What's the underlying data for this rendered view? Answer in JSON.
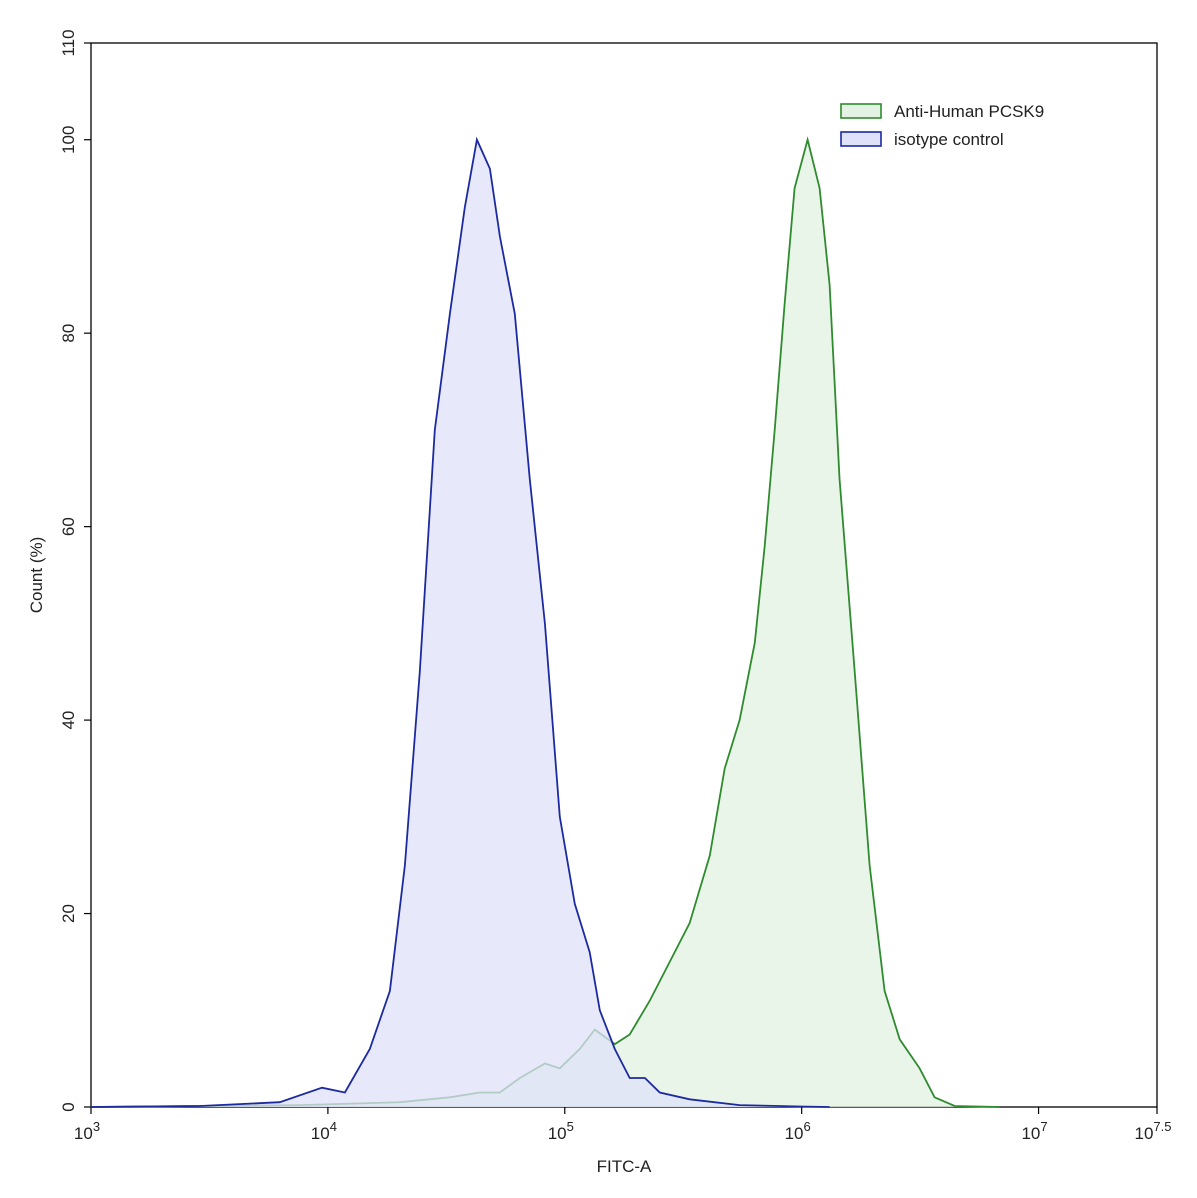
{
  "chart_data": {
    "type": "area",
    "xlabel": "FITC-A",
    "ylabel": "Count (%)",
    "xscale": "log",
    "xlim": [
      1000,
      31622777
    ],
    "ylim": [
      0,
      110
    ],
    "xticks": [
      {
        "value": 1000,
        "label": "10",
        "sup": "3"
      },
      {
        "value": 10000,
        "label": "10",
        "sup": "4"
      },
      {
        "value": 100000,
        "label": "10",
        "sup": "5"
      },
      {
        "value": 1000000,
        "label": "10",
        "sup": "6"
      },
      {
        "value": 10000000,
        "label": "10",
        "sup": "7"
      },
      {
        "value": 31622777,
        "label": "10",
        "sup": "7.5"
      }
    ],
    "yticks": [
      0,
      20,
      40,
      60,
      80,
      100,
      110
    ],
    "legend": "upper right",
    "series": [
      {
        "name": "Anti-Human PCSK9",
        "color": "#2e8b2e",
        "fill": "#e3f2e3",
        "x": [
          1000,
          7621,
          20140,
          32730,
          43750,
          53210,
          64570,
          82410,
          95280,
          115600,
          133900,
          162600,
          187900,
          228600,
          277300,
          336500,
          409300,
          473200,
          547000,
          633900,
          698300,
          769100,
          847200,
          933300,
          1059000,
          1191000,
          1312000,
          1445000,
          1675000,
          1936000,
          2239000,
          2594000,
          3148000,
          3641000,
          4426000,
          6839000
        ],
        "values": [
          0,
          0.2,
          0.5,
          1,
          1.5,
          1.5,
          3,
          4.5,
          4,
          6,
          8,
          6.5,
          7.5,
          11,
          15,
          19,
          26,
          35,
          40,
          48,
          58,
          70,
          83,
          95,
          100,
          95,
          85,
          65,
          45,
          25,
          12,
          7,
          4,
          1,
          0.1,
          0
        ]
      },
      {
        "name": "isotype control",
        "color": "#1c2aa0",
        "fill": "#dfe1f8",
        "x": [
          1000,
          2884,
          6266,
          9441,
          11800,
          15030,
          18270,
          21130,
          24440,
          28260,
          32730,
          37840,
          42560,
          48310,
          53210,
          61520,
          71120,
          82410,
          95280,
          110200,
          127400,
          140600,
          162600,
          187900,
          217800,
          251800,
          336500,
          547000,
          982000,
          1312000
        ],
        "values": [
          0,
          0.1,
          0.5,
          2,
          1.5,
          6,
          12,
          25,
          45,
          70,
          82,
          93,
          100,
          97,
          90,
          82,
          65,
          50,
          30,
          21,
          16,
          10,
          6,
          3,
          3,
          1.5,
          0.8,
          0.2,
          0.05,
          0
        ]
      }
    ]
  }
}
